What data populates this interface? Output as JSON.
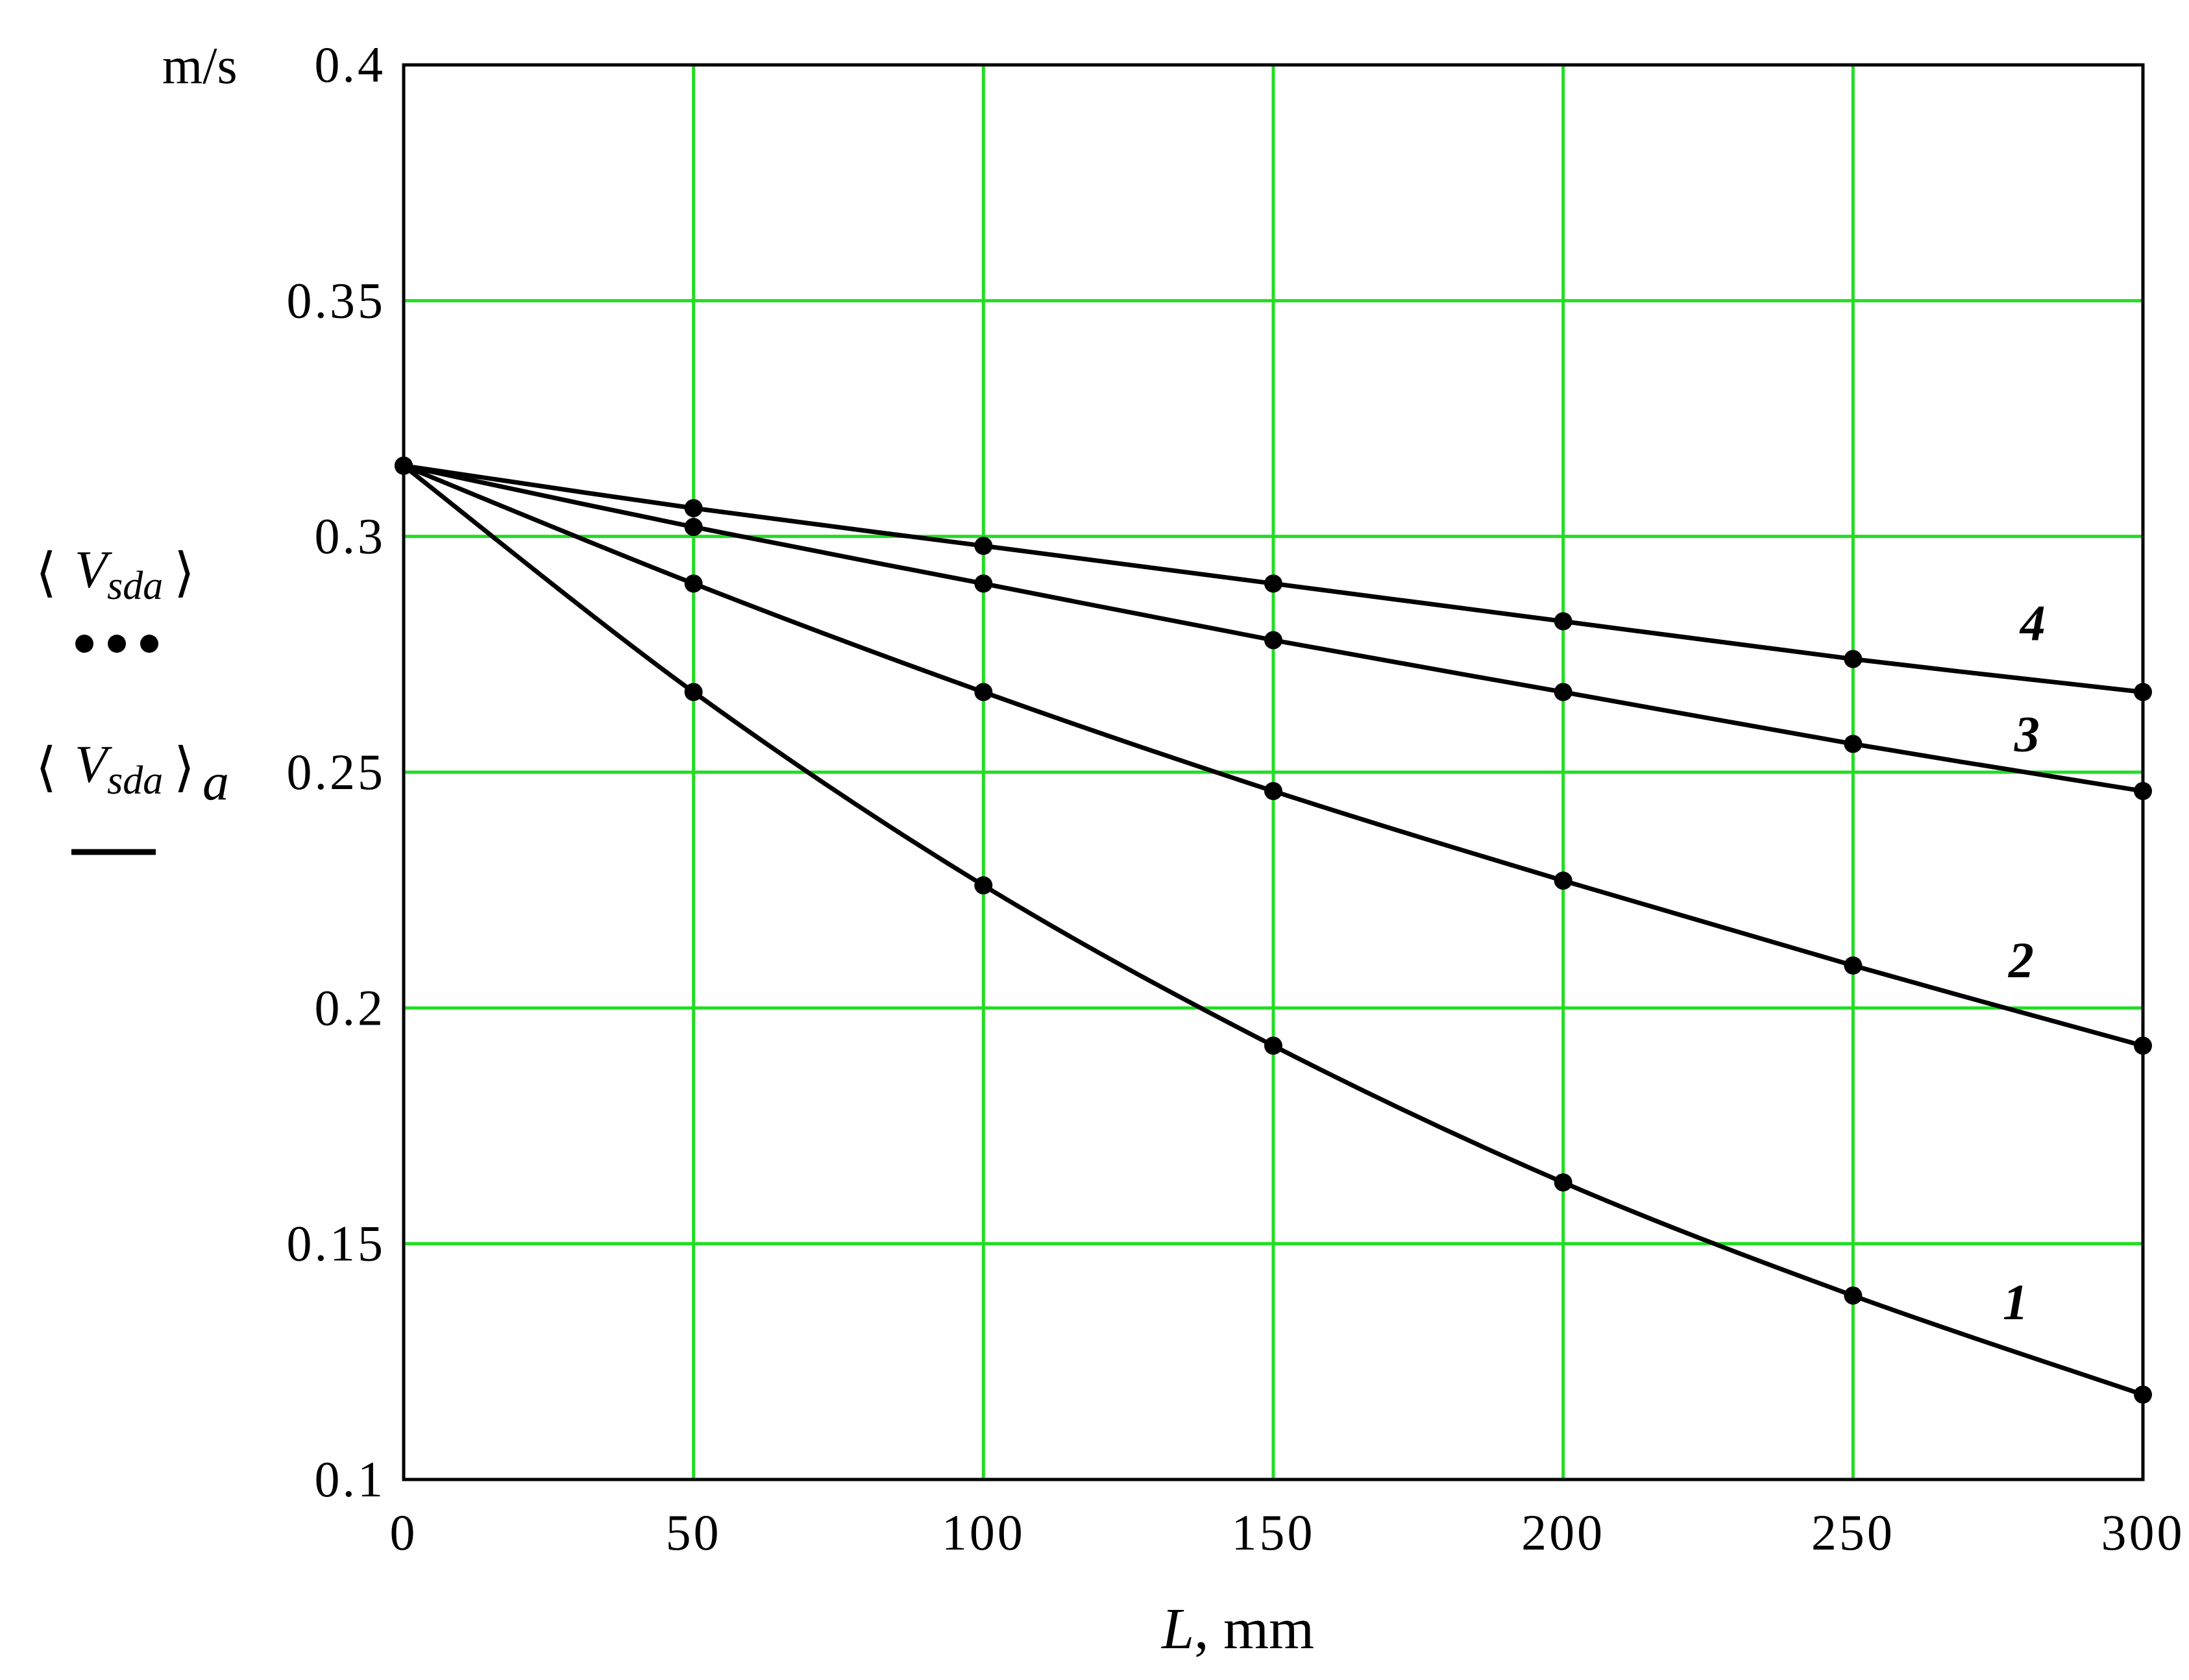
{
  "chart_data": {
    "type": "line",
    "title": "",
    "y_unit": "m/s",
    "xlabel_var": "L",
    "xlabel_unit": ", mm",
    "xlim": [
      0,
      300
    ],
    "ylim": [
      0.1,
      0.4
    ],
    "grid": true,
    "grid_color": "#22dd22",
    "x_ticks": [
      0,
      50,
      100,
      150,
      200,
      250,
      300
    ],
    "x_tick_labels": [
      "0",
      "50",
      "100",
      "150",
      "200",
      "250",
      "300"
    ],
    "y_ticks": [
      0.1,
      0.15,
      0.2,
      0.25,
      0.3,
      0.35,
      0.4
    ],
    "y_tick_labels": [
      "0.1",
      "0.15",
      "0.2",
      "0.25",
      "0.3",
      "0.35",
      "0.4"
    ],
    "legend": [
      {
        "var": "V",
        "sub": "sda",
        "suffix": "",
        "style": "dots"
      },
      {
        "var": "V",
        "sub": "sda",
        "suffix": "a",
        "style": "line"
      }
    ],
    "series": [
      {
        "name": "1",
        "x": [
          0,
          50,
          100,
          150,
          200,
          250,
          300
        ],
        "values": [
          0.315,
          0.267,
          0.226,
          0.192,
          0.163,
          0.139,
          0.118
        ]
      },
      {
        "name": "2",
        "x": [
          0,
          50,
          100,
          150,
          200,
          250,
          300
        ],
        "values": [
          0.315,
          0.29,
          0.267,
          0.246,
          0.227,
          0.209,
          0.192
        ]
      },
      {
        "name": "3",
        "x": [
          0,
          50,
          100,
          150,
          200,
          250,
          300
        ],
        "values": [
          0.315,
          0.302,
          0.29,
          0.278,
          0.267,
          0.256,
          0.246
        ]
      },
      {
        "name": "4",
        "x": [
          0,
          50,
          100,
          150,
          200,
          250,
          300
        ],
        "values": [
          0.315,
          0.306,
          0.298,
          0.29,
          0.282,
          0.274,
          0.267
        ]
      }
    ],
    "curve_label_pos": [
      {
        "series": "1",
        "x": 278,
        "y": 0.134
      },
      {
        "series": "2",
        "x": 279,
        "y": 0.2065
      },
      {
        "series": "3",
        "x": 280,
        "y": 0.2545
      },
      {
        "series": "4",
        "x": 281,
        "y": 0.278
      }
    ]
  }
}
